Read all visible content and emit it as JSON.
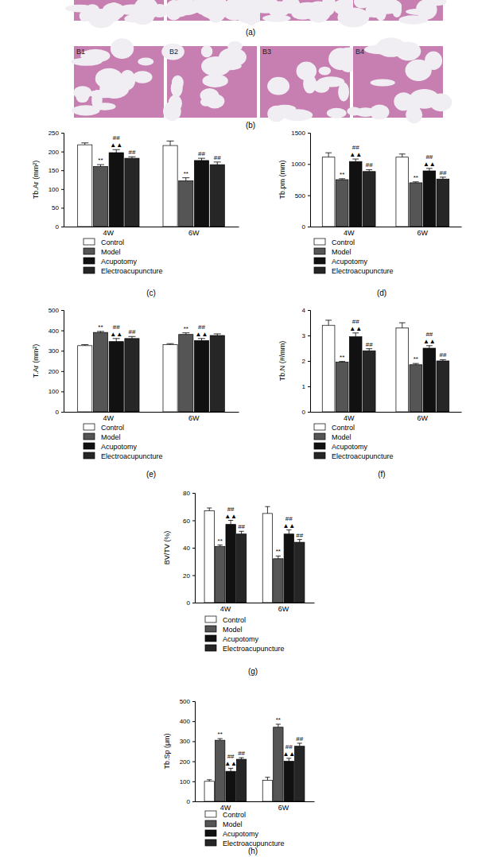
{
  "figure_panels": [
    {
      "label": "(a)"
    },
    {
      "label": "(b)",
      "images": [
        "B1",
        "B2",
        "B3",
        "B4"
      ]
    }
  ],
  "chart_data": [
    {
      "type": "bar",
      "title": "(c)",
      "y_label": "Tb.Ar (mm²)",
      "categories": [
        "4W",
        "6W"
      ],
      "ylim": [
        0,
        250
      ],
      "yticks": [
        0,
        50,
        100,
        150,
        200,
        250
      ],
      "series": [
        {
          "name": "Control",
          "color": "#ffffff",
          "values": [
            218,
            216
          ],
          "errors": [
            5,
            12
          ],
          "annotations": [
            [],
            []
          ]
        },
        {
          "name": "Model",
          "color": "#555555",
          "values": [
            160,
            122
          ],
          "errors": [
            5,
            8
          ],
          "annotations": [
            [
              "**"
            ],
            [
              "**"
            ]
          ]
        },
        {
          "name": "Acupotomy",
          "color": "#111111",
          "values": [
            197,
            176
          ],
          "errors": [
            8,
            6
          ],
          "annotations": [
            [
              "##",
              "▲▲"
            ],
            [
              "##"
            ]
          ]
        },
        {
          "name": "Electroacupuncture",
          "color": "#262626",
          "values": [
            182,
            165
          ],
          "errors": [
            4,
            7
          ],
          "annotations": [
            [
              "##"
            ],
            [
              "##"
            ]
          ]
        }
      ]
    },
    {
      "type": "bar",
      "title": "(d)",
      "y_label": "Tb.pm (mm)",
      "categories": [
        "4W",
        "6W"
      ],
      "ylim": [
        0,
        1500
      ],
      "yticks": [
        0,
        500,
        1000,
        1500
      ],
      "series": [
        {
          "name": "Control",
          "color": "#ffffff",
          "values": [
            1110,
            1110
          ],
          "errors": [
            70,
            50
          ],
          "annotations": [
            [],
            []
          ]
        },
        {
          "name": "Model",
          "color": "#555555",
          "values": [
            750,
            700
          ],
          "errors": [
            15,
            15
          ],
          "annotations": [
            [
              "**"
            ],
            [
              "**"
            ]
          ]
        },
        {
          "name": "Acupotomy",
          "color": "#111111",
          "values": [
            1040,
            890
          ],
          "errors": [
            40,
            40
          ],
          "annotations": [
            [
              "##",
              "▲▲"
            ],
            [
              "##",
              "▲▲"
            ]
          ]
        },
        {
          "name": "Electroacupuncture",
          "color": "#262626",
          "values": [
            880,
            760
          ],
          "errors": [
            30,
            30
          ],
          "annotations": [
            [
              "##"
            ],
            [
              "##"
            ]
          ]
        }
      ]
    },
    {
      "type": "bar",
      "title": "(e)",
      "y_label": "T.Ar (mm²)",
      "categories": [
        "4W",
        "6W"
      ],
      "ylim": [
        0,
        500
      ],
      "yticks": [
        0,
        100,
        200,
        300,
        400,
        500
      ],
      "series": [
        {
          "name": "Control",
          "color": "#ffffff",
          "values": [
            325,
            330
          ],
          "errors": [
            5,
            5
          ],
          "annotations": [
            [],
            []
          ]
        },
        {
          "name": "Model",
          "color": "#555555",
          "values": [
            390,
            380
          ],
          "errors": [
            5,
            8
          ],
          "annotations": [
            [
              "**"
            ],
            [
              "**"
            ]
          ]
        },
        {
          "name": "Acupotomy",
          "color": "#111111",
          "values": [
            345,
            350
          ],
          "errors": [
            15,
            10
          ],
          "annotations": [
            [
              "##",
              "▲▲"
            ],
            [
              "##",
              "▲▲"
            ]
          ]
        },
        {
          "name": "Electroacupuncture",
          "color": "#262626",
          "values": [
            360,
            375
          ],
          "errors": [
            10,
            8
          ],
          "annotations": [
            [
              "##"
            ],
            []
          ]
        }
      ]
    },
    {
      "type": "bar",
      "title": "(f)",
      "y_label": "Tb.N (#/mm)",
      "categories": [
        "4W",
        "6W"
      ],
      "ylim": [
        0,
        4
      ],
      "yticks": [
        0,
        1,
        2,
        3,
        4
      ],
      "series": [
        {
          "name": "Control",
          "color": "#ffffff",
          "values": [
            3.4,
            3.3
          ],
          "errors": [
            0.2,
            0.2
          ],
          "annotations": [
            [],
            []
          ]
        },
        {
          "name": "Model",
          "color": "#555555",
          "values": [
            1.95,
            1.85
          ],
          "errors": [
            0.03,
            0.05
          ],
          "annotations": [
            [
              "**"
            ],
            [
              "**"
            ]
          ]
        },
        {
          "name": "Acupotomy",
          "color": "#111111",
          "values": [
            2.95,
            2.5
          ],
          "errors": [
            0.15,
            0.1
          ],
          "annotations": [
            [
              "##",
              "▲▲"
            ],
            [
              "##",
              "▲▲"
            ]
          ]
        },
        {
          "name": "Electroacupuncture",
          "color": "#262626",
          "values": [
            2.4,
            2.0
          ],
          "errors": [
            0.08,
            0.05
          ],
          "annotations": [
            [
              "##"
            ],
            [
              "##"
            ]
          ]
        }
      ]
    },
    {
      "type": "bar",
      "title": "(g)",
      "y_label": "BV/TV (%)",
      "categories": [
        "4W",
        "6W"
      ],
      "ylim": [
        0,
        80
      ],
      "yticks": [
        0,
        20,
        40,
        60,
        80
      ],
      "series": [
        {
          "name": "Control",
          "color": "#ffffff",
          "values": [
            67,
            65
          ],
          "errors": [
            2,
            5
          ],
          "annotations": [
            [],
            []
          ]
        },
        {
          "name": "Model",
          "color": "#555555",
          "values": [
            41,
            32
          ],
          "errors": [
            1,
            2
          ],
          "annotations": [
            [
              "**"
            ],
            [
              "**"
            ]
          ]
        },
        {
          "name": "Acupotomy",
          "color": "#111111",
          "values": [
            57,
            50
          ],
          "errors": [
            3,
            3
          ],
          "annotations": [
            [
              "##",
              "▲▲"
            ],
            [
              "##",
              "▲▲"
            ]
          ]
        },
        {
          "name": "Electroacupuncture",
          "color": "#262626",
          "values": [
            50,
            44
          ],
          "errors": [
            2,
            2
          ],
          "annotations": [
            [
              "##"
            ],
            [
              "##"
            ]
          ]
        }
      ]
    },
    {
      "type": "bar",
      "title": "(h)",
      "y_label": "Tb.Sp (μm)",
      "categories": [
        "4W",
        "6W"
      ],
      "ylim": [
        0,
        500
      ],
      "yticks": [
        0,
        100,
        200,
        300,
        400,
        500
      ],
      "series": [
        {
          "name": "Control",
          "color": "#ffffff",
          "values": [
            100,
            105
          ],
          "errors": [
            8,
            15
          ],
          "annotations": [
            [],
            []
          ]
        },
        {
          "name": "Model",
          "color": "#555555",
          "values": [
            305,
            370
          ],
          "errors": [
            8,
            15
          ],
          "annotations": [
            [
              "**"
            ],
            [
              "**"
            ]
          ]
        },
        {
          "name": "Acupotomy",
          "color": "#111111",
          "values": [
            150,
            200
          ],
          "errors": [
            15,
            15
          ],
          "annotations": [
            [
              "##",
              "▲▲"
            ],
            [
              "##",
              "▲▲"
            ]
          ]
        },
        {
          "name": "Electroacupuncture",
          "color": "#262626",
          "values": [
            210,
            275
          ],
          "errors": [
            8,
            15
          ],
          "annotations": [
            [
              "##"
            ],
            [
              "##"
            ]
          ]
        }
      ]
    }
  ]
}
